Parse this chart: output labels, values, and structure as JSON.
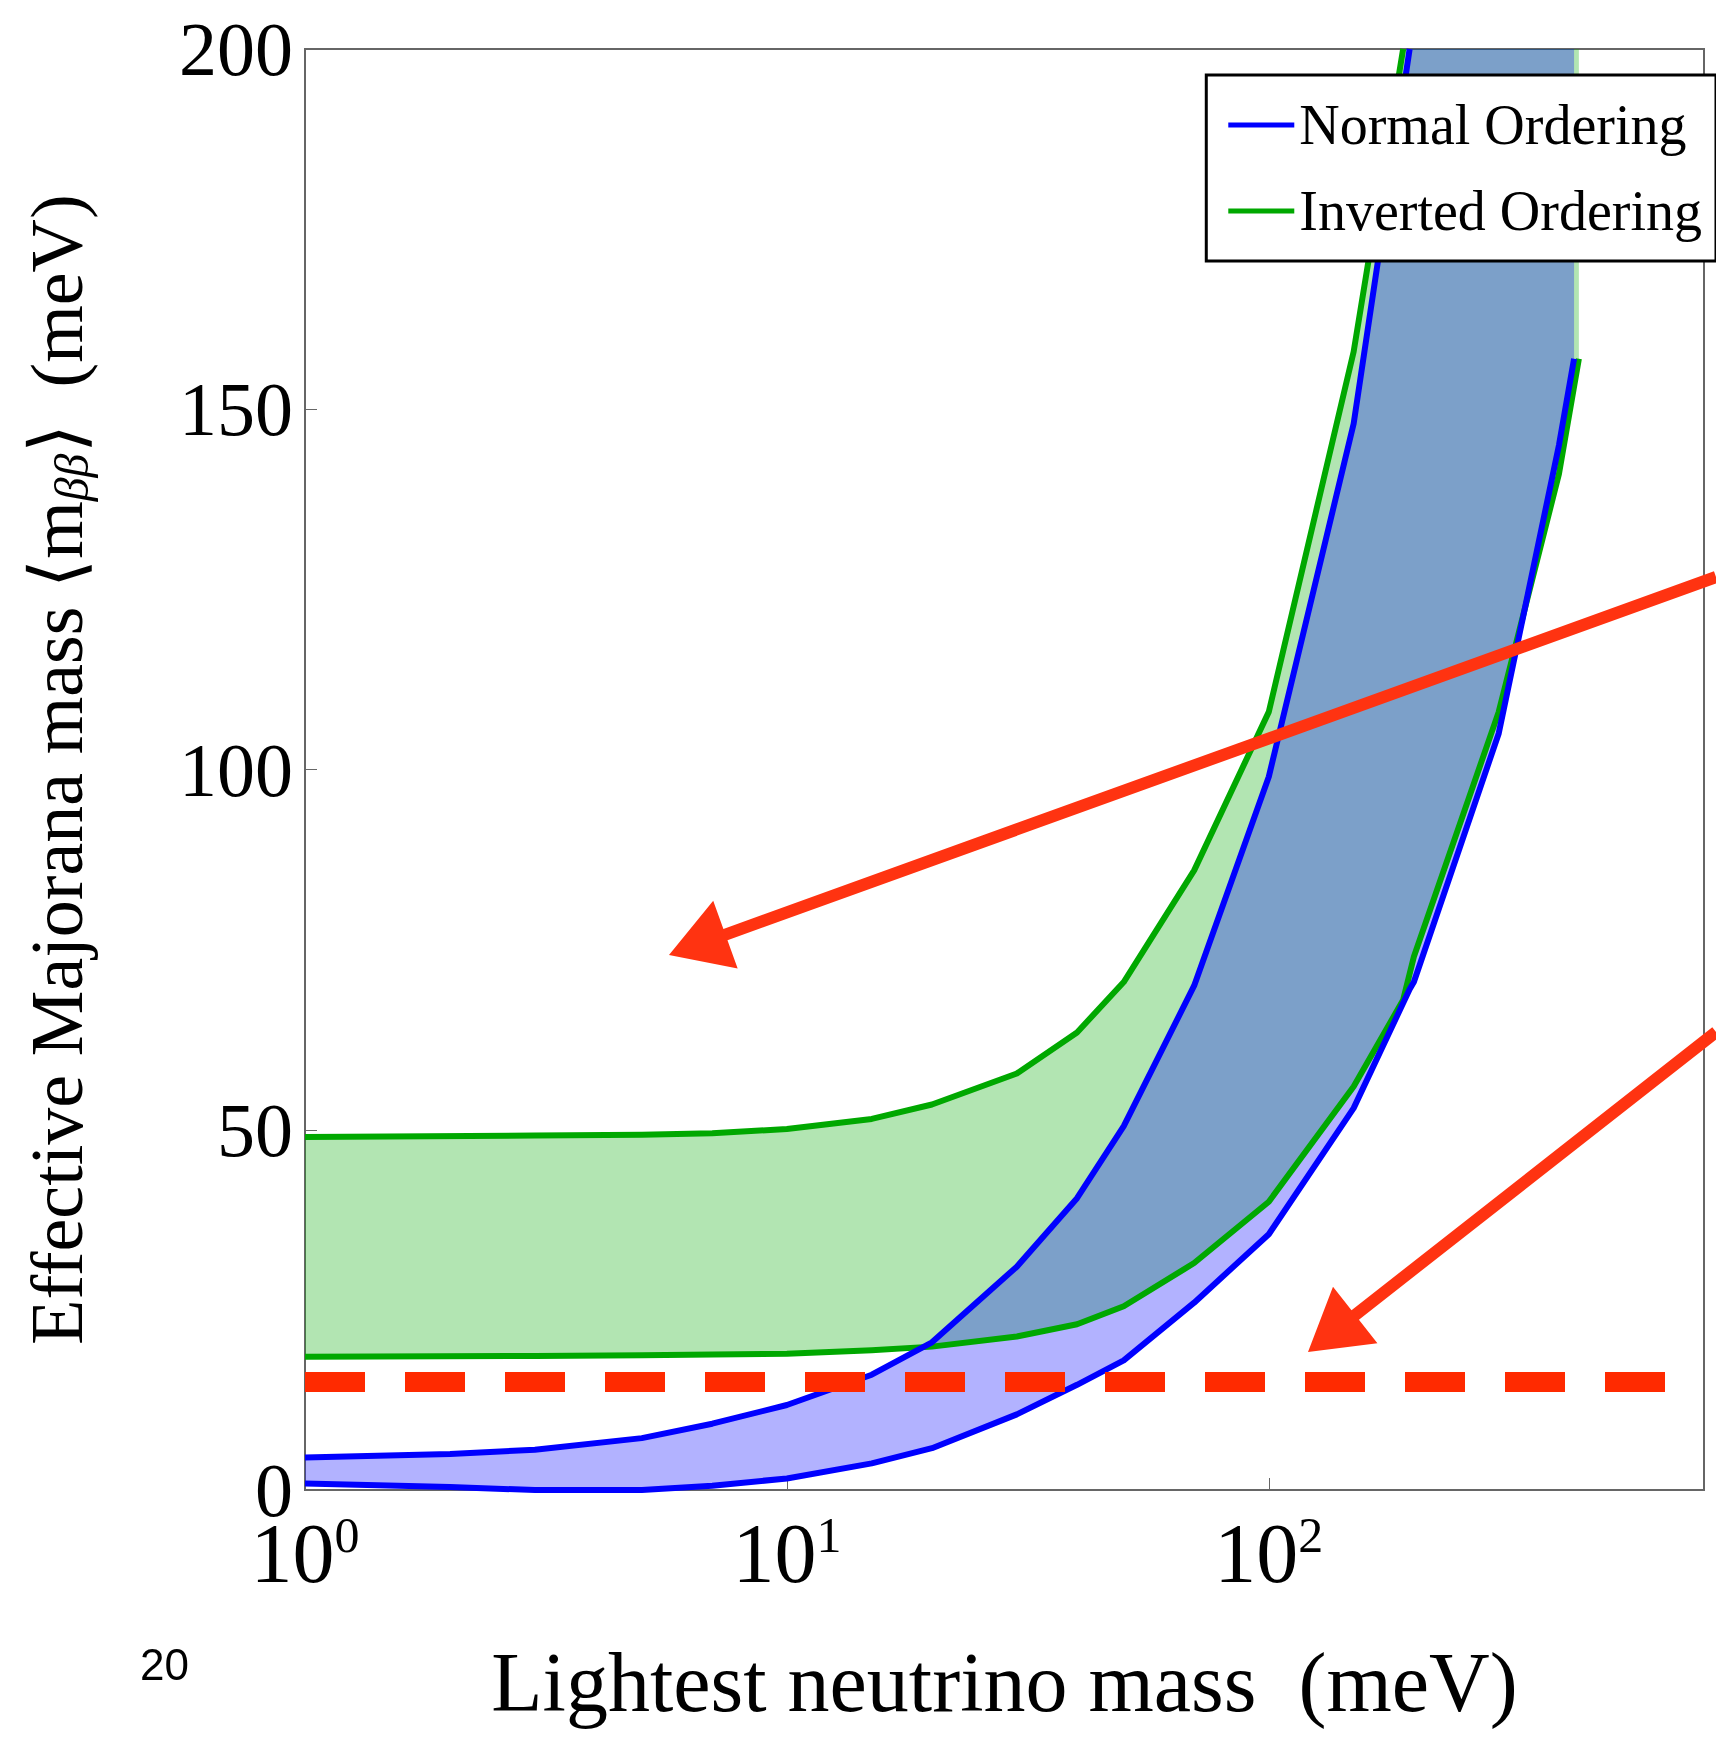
{
  "chart_data": {
    "type": "line",
    "xlabel": "Lightest neutrino mass  (meV)",
    "ylabel": "Effective Majorana mass ⟨m$_{ββ}$⟩  (meV)",
    "log": "x",
    "xlim": [
      1,
      800
    ],
    "xticks": [
      {
        "value": 1,
        "label": "10$^{0}$"
      },
      {
        "value": 10,
        "label": "10$^{1}$"
      },
      {
        "value": 100,
        "label": "10$^{2}$"
      }
    ],
    "ylim": [
      0,
      200
    ],
    "yticks": [
      0,
      50,
      100,
      150,
      200
    ],
    "grid": false,
    "legend": "top right",
    "marker": "none",
    "line_style": "solid",
    "series": [
      {
        "name": "Inverted Ordering",
        "color": "#00a800",
        "x": [
          1,
          3,
          5,
          7,
          10,
          15,
          20,
          30,
          40,
          50,
          70,
          100,
          150,
          190,
          200,
          300,
          400,
          440
        ],
        "values": [
          49,
          49.2,
          49.3,
          49.5,
          50.1,
          51.5,
          53.5,
          57.8,
          63.5,
          70.5,
          86,
          108,
          158,
          200,
          null,
          null,
          null,
          null
        ],
        "upper": [
          49,
          49.2,
          49.3,
          49.5,
          50.1,
          51.5,
          53.5,
          57.8,
          63.5,
          70.5,
          86,
          108,
          158,
          200,
          200,
          200,
          200,
          200
        ],
        "lower": [
          18.5,
          18.6,
          18.7,
          18.8,
          18.9,
          19.4,
          19.9,
          21.3,
          23,
          25.5,
          31.5,
          40,
          56,
          68,
          74,
          108,
          141,
          157
        ]
      },
      {
        "color": "#00a800",
        "x": [
          1,
          3,
          5,
          7,
          10,
          15,
          20,
          30,
          40,
          50,
          70,
          100,
          150,
          190,
          200,
          300,
          400,
          440
        ],
        "values": [
          18.5,
          18.6,
          18.7,
          18.8,
          18.9,
          19.4,
          19.9,
          21.3,
          23,
          25.5,
          31.5,
          40,
          56,
          68,
          74,
          108,
          141,
          157
        ]
      },
      {
        "name": "Normal Ordering",
        "color": "#0000ff",
        "x": [
          1,
          2,
          3,
          5,
          7,
          10,
          15,
          20,
          30,
          40,
          50,
          70,
          100,
          150,
          196,
          200,
          300,
          400,
          430
        ],
        "values": [
          4.5,
          5,
          5.6,
          7.2,
          9.2,
          11.8,
          16,
          20.5,
          31,
          40.5,
          50.5,
          70,
          99,
          148,
          200,
          null,
          null,
          null,
          null
        ],
        "upper": [
          4.5,
          5,
          5.6,
          7.2,
          9.2,
          11.8,
          16,
          20.5,
          31,
          40.5,
          50.5,
          70,
          99,
          148,
          200,
          200,
          200,
          200,
          200
        ],
        "lower": [
          0.9,
          0.4,
          0,
          0,
          0.6,
          1.6,
          3.7,
          5.8,
          10.5,
          14.6,
          18,
          26,
          35.5,
          53,
          69.5,
          70.5,
          105,
          145,
          157
        ]
      },
      {
        "color": "#0000ff",
        "x": [
          1,
          2,
          3,
          5,
          7,
          10,
          15,
          20,
          30,
          40,
          50,
          70,
          100,
          150,
          196,
          200,
          300,
          400,
          430
        ],
        "values": [
          0.9,
          0.4,
          0,
          0,
          0.6,
          1.6,
          3.7,
          5.8,
          10.5,
          14.6,
          18,
          26,
          35.5,
          53,
          69.5,
          70.5,
          105,
          145,
          157
        ]
      }
    ],
    "ref_lines": [
      {
        "axis": "y",
        "value": 15,
        "color": "#ff2a00",
        "line_style": "dashed"
      }
    ],
    "annotations": [
      "20"
    ]
  }
}
